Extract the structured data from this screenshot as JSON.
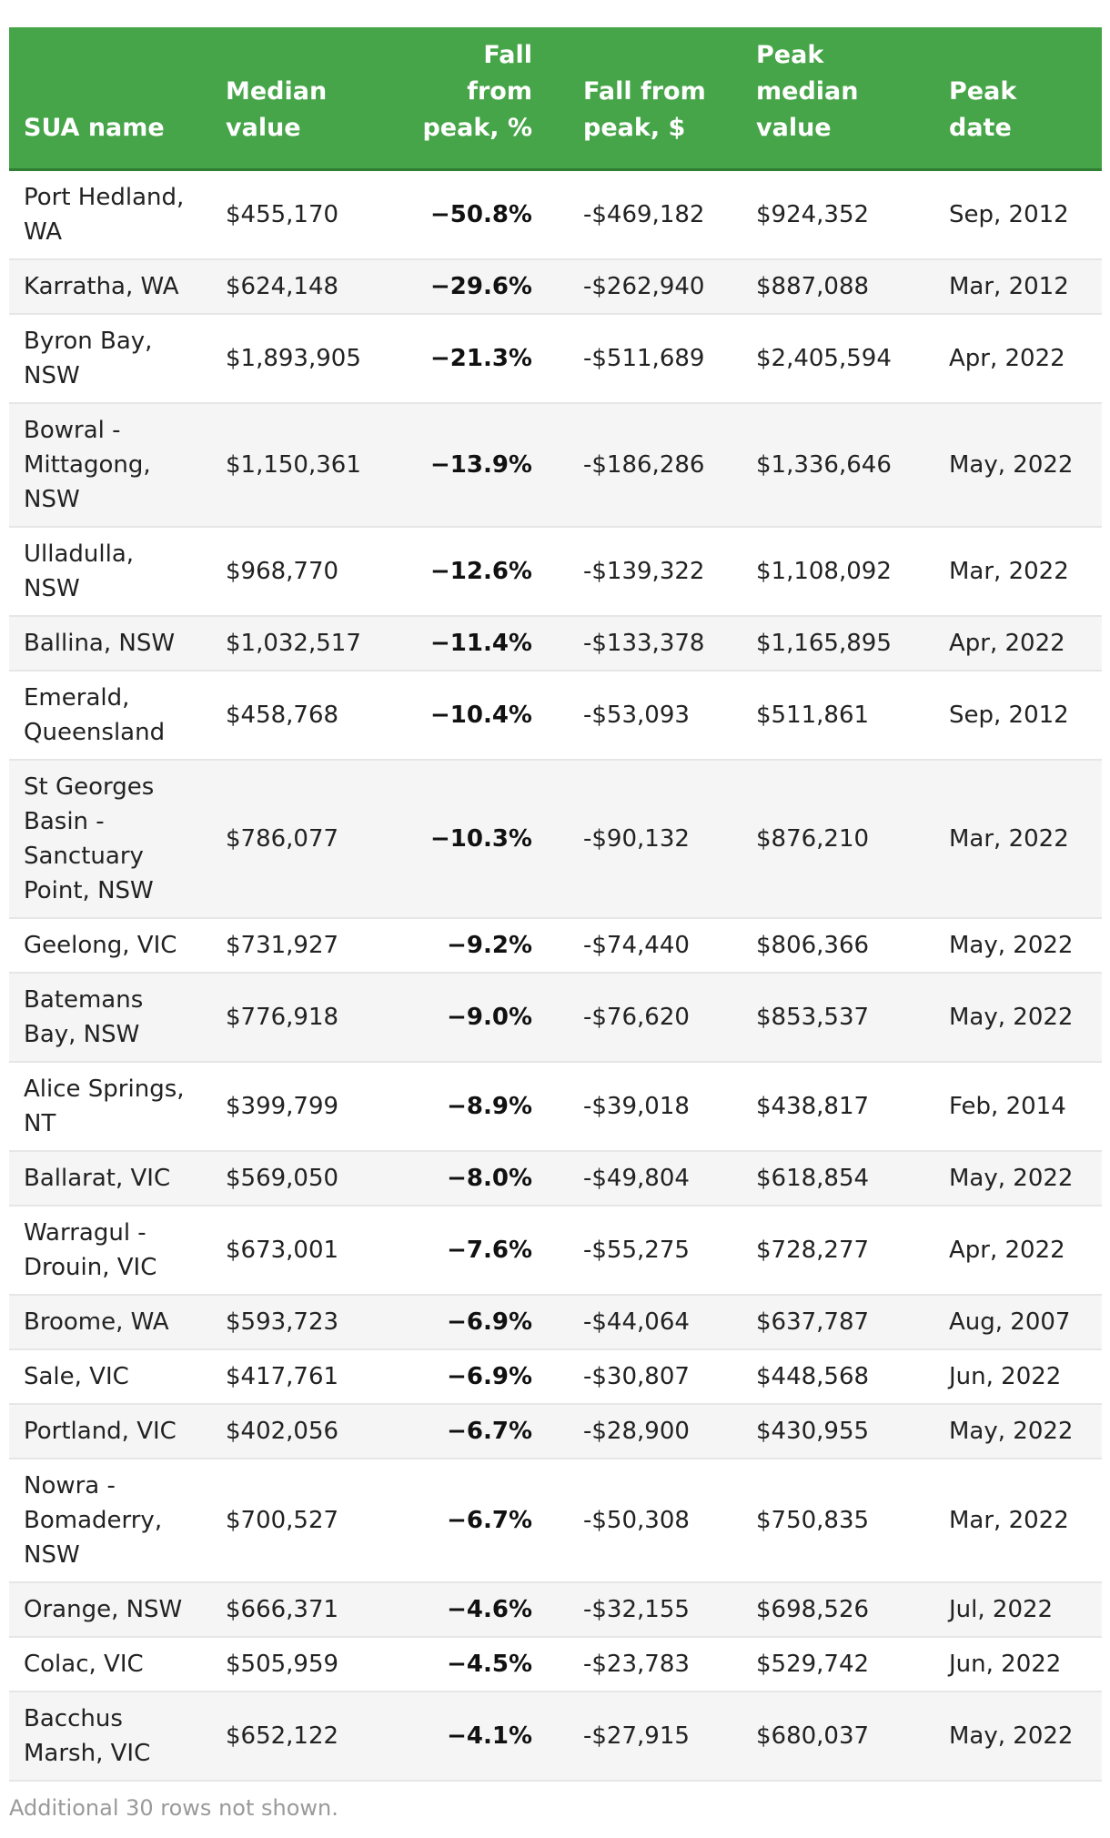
{
  "table": {
    "headers": [
      "SUA name",
      "Median value",
      "Fall from peak, %",
      "Fall from peak, $",
      "Peak median value",
      "Peak date"
    ],
    "rows": [
      [
        "Port Hedland, WA",
        "$455,170",
        "−50.8%",
        "-$469,182",
        "$924,352",
        "Sep, 2012"
      ],
      [
        "Karratha, WA",
        "$624,148",
        "−29.6%",
        "-$262,940",
        "$887,088",
        "Mar, 2012"
      ],
      [
        "Byron Bay, NSW",
        "$1,893,905",
        "−21.3%",
        "-$511,689",
        "$2,405,594",
        "Apr, 2022"
      ],
      [
        "Bowral - Mittagong, NSW",
        "$1,150,361",
        "−13.9%",
        "-$186,286",
        "$1,336,646",
        "May, 2022"
      ],
      [
        "Ulladulla, NSW",
        "$968,770",
        "−12.6%",
        "-$139,322",
        "$1,108,092",
        "Mar, 2022"
      ],
      [
        "Ballina, NSW",
        "$1,032,517",
        "−11.4%",
        "-$133,378",
        "$1,165,895",
        "Apr, 2022"
      ],
      [
        "Emerald, Queensland",
        "$458,768",
        "−10.4%",
        "-$53,093",
        "$511,861",
        "Sep, 2012"
      ],
      [
        "St Georges Basin - Sanctuary Point, NSW",
        "$786,077",
        "−10.3%",
        "-$90,132",
        "$876,210",
        "Mar, 2022"
      ],
      [
        "Geelong, VIC",
        "$731,927",
        "−9.2%",
        "-$74,440",
        "$806,366",
        "May, 2022"
      ],
      [
        "Batemans Bay, NSW",
        "$776,918",
        "−9.0%",
        "-$76,620",
        "$853,537",
        "May, 2022"
      ],
      [
        "Alice Springs, NT",
        "$399,799",
        "−8.9%",
        "-$39,018",
        "$438,817",
        "Feb, 2014"
      ],
      [
        "Ballarat, VIC",
        "$569,050",
        "−8.0%",
        "-$49,804",
        "$618,854",
        "May, 2022"
      ],
      [
        "Warragul - Drouin, VIC",
        "$673,001",
        "−7.6%",
        "-$55,275",
        "$728,277",
        "Apr, 2022"
      ],
      [
        "Broome, WA",
        "$593,723",
        "−6.9%",
        "-$44,064",
        "$637,787",
        "Aug, 2007"
      ],
      [
        "Sale, VIC",
        "$417,761",
        "−6.9%",
        "-$30,807",
        "$448,568",
        "Jun, 2022"
      ],
      [
        "Portland, VIC",
        "$402,056",
        "−6.7%",
        "-$28,900",
        "$430,955",
        "May, 2022"
      ],
      [
        "Nowra - Bomaderry, NSW",
        "$700,527",
        "−6.7%",
        "-$50,308",
        "$750,835",
        "Mar, 2022"
      ],
      [
        "Orange, NSW",
        "$666,371",
        "−4.6%",
        "-$32,155",
        "$698,526",
        "Jul, 2022"
      ],
      [
        "Colac, VIC",
        "$505,959",
        "−4.5%",
        "-$23,783",
        "$529,742",
        "Jun, 2022"
      ],
      [
        "Bacchus Marsh, VIC",
        "$652,122",
        "−4.1%",
        "-$27,915",
        "$680,037",
        "May, 2022"
      ]
    ]
  },
  "footnote": "Additional 30 rows not shown.",
  "colors": {
    "header_bg": "#46a548",
    "header_text": "#ffffff",
    "row_alt_bg": "#f5f5f5",
    "footnote_text": "#9a9a9a"
  }
}
